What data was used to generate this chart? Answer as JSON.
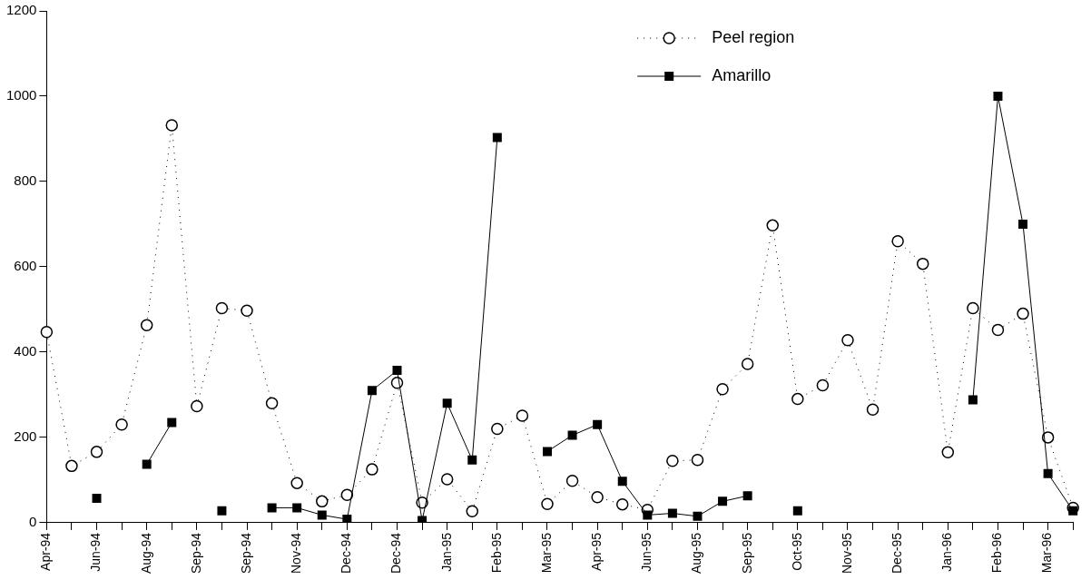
{
  "chart_data": {
    "type": "line",
    "categories": [
      "Apr-94",
      null,
      "Jun-94",
      null,
      "Aug-94",
      null,
      "Sep-94",
      null,
      "Sep-94",
      null,
      "Nov-94",
      null,
      "Dec-94",
      null,
      "Dec-94",
      null,
      "Jan-95",
      null,
      "Feb-95",
      null,
      "Mar-95",
      null,
      "Apr-95",
      null,
      "Jun-95",
      null,
      "Aug-95",
      null,
      "Sep-95",
      null,
      "Oct-95",
      null,
      "Nov-95",
      null,
      "Dec-95",
      null,
      "Jan-96",
      null,
      "Feb-96",
      null,
      "Mar-96",
      null
    ],
    "series": [
      {
        "name": "Peel region",
        "color": "#000000",
        "marker": "circle",
        "line_style": "dotted",
        "values": [
          447,
          133,
          166,
          230,
          463,
          932,
          273,
          503,
          497,
          280,
          93,
          50,
          65,
          125,
          328,
          47,
          102,
          27,
          220,
          251,
          44,
          98,
          60,
          43,
          30,
          145,
          147,
          313,
          372,
          697,
          290,
          322,
          428,
          265,
          660,
          607,
          165,
          503,
          452,
          490,
          200,
          35
        ]
      },
      {
        "name": "Amarillo",
        "color": "#000000",
        "marker": "square",
        "line_style": "solid",
        "values": [
          null,
          null,
          57,
          null,
          137,
          235,
          null,
          28,
          null,
          35,
          35,
          18,
          8,
          310,
          357,
          5,
          280,
          147,
          903,
          null,
          167,
          205,
          230,
          97,
          18,
          22,
          15,
          50,
          63,
          null,
          28,
          null,
          null,
          null,
          null,
          null,
          null,
          288,
          1000,
          700,
          115,
          28
        ]
      }
    ],
    "ylim": [
      0,
      1200
    ],
    "yticks": [
      0,
      200,
      400,
      600,
      800,
      1000,
      1200
    ],
    "grid": false,
    "legend": "top right"
  }
}
